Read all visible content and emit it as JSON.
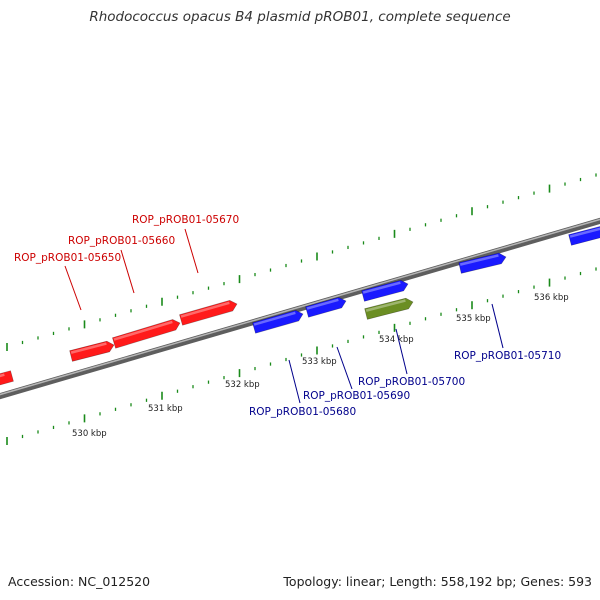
{
  "title": "Rhodococcus opacus B4 plasmid pROB01, complete sequence",
  "footer": {
    "accession": "Accession: NC_012520",
    "summary": "Topology: linear; Length: 558,192 bp; Genes: 593"
  },
  "colors": {
    "forward_gene": "#ff1a1a",
    "reverse_gene": "#1a1aff",
    "other_gene": "#6b8e23",
    "forward_label": "#cc0000",
    "reverse_label": "#00008b",
    "tick": "#1a8a1a",
    "backbone": "#8a8a8a"
  },
  "map": {
    "kbp_ticks": [
      {
        "position": 530,
        "label": "530 kbp"
      },
      {
        "position": 531,
        "label": "531 kbp"
      },
      {
        "position": 532,
        "label": "532 kbp"
      },
      {
        "position": 533,
        "label": "533 kbp"
      },
      {
        "position": 534,
        "label": "534 kbp"
      },
      {
        "position": 535,
        "label": "535 kbp"
      },
      {
        "position": 536,
        "label": "536 kbp"
      }
    ],
    "forward_genes": [
      {
        "id": "ROP_pROB01-05650",
        "label": "ROP_pROB01-05650"
      },
      {
        "id": "ROP_pROB01-05660",
        "label": "ROP_pROB01-05660"
      },
      {
        "id": "ROP_pROB01-05670",
        "label": "ROP_pROB01-05670"
      }
    ],
    "reverse_genes": [
      {
        "id": "ROP_pROB01-05680",
        "label": "ROP_pROB01-05680"
      },
      {
        "id": "ROP_pROB01-05690",
        "label": "ROP_pROB01-05690"
      },
      {
        "id": "ROP_pROB01-05700",
        "label": "ROP_pROB01-05700"
      },
      {
        "id": "ROP_pROB01-05710",
        "label": "ROP_pROB01-05710"
      }
    ]
  }
}
